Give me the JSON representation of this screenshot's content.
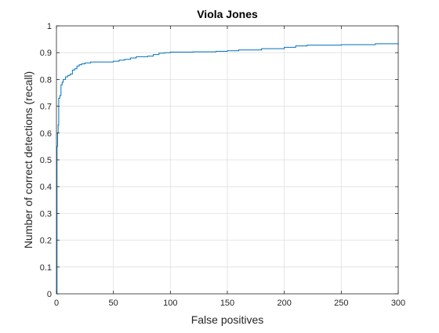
{
  "chart_data": {
    "type": "line",
    "title": "Viola Jones",
    "xlabel": "False positives",
    "ylabel": "Number of correct detections (recall)",
    "xlim": [
      0,
      300
    ],
    "ylim": [
      0,
      1
    ],
    "xticks": [
      0,
      50,
      100,
      150,
      200,
      250,
      300
    ],
    "yticks": [
      0,
      0.1,
      0.2,
      0.3,
      0.4,
      0.5,
      0.6,
      0.7,
      0.8,
      0.9,
      1
    ],
    "grid": true,
    "line_color": "#0072BD",
    "series": [
      {
        "step": true,
        "x": [
          0,
          0.5,
          1,
          1.5,
          2,
          3,
          4,
          5,
          6,
          8,
          10,
          12,
          14,
          16,
          18,
          20,
          22,
          25,
          30,
          40,
          50,
          55,
          60,
          65,
          70,
          80,
          85,
          90,
          95,
          100,
          120,
          140,
          150,
          160,
          180,
          200,
          210,
          220,
          250,
          280,
          300
        ],
        "y": [
          0,
          0.55,
          0.6,
          0.63,
          0.73,
          0.74,
          0.78,
          0.79,
          0.8,
          0.81,
          0.815,
          0.82,
          0.835,
          0.84,
          0.85,
          0.855,
          0.858,
          0.862,
          0.865,
          0.865,
          0.868,
          0.872,
          0.875,
          0.88,
          0.885,
          0.887,
          0.893,
          0.898,
          0.9,
          0.902,
          0.903,
          0.905,
          0.907,
          0.91,
          0.915,
          0.92,
          0.925,
          0.928,
          0.93,
          0.933,
          0.935
        ]
      }
    ]
  }
}
